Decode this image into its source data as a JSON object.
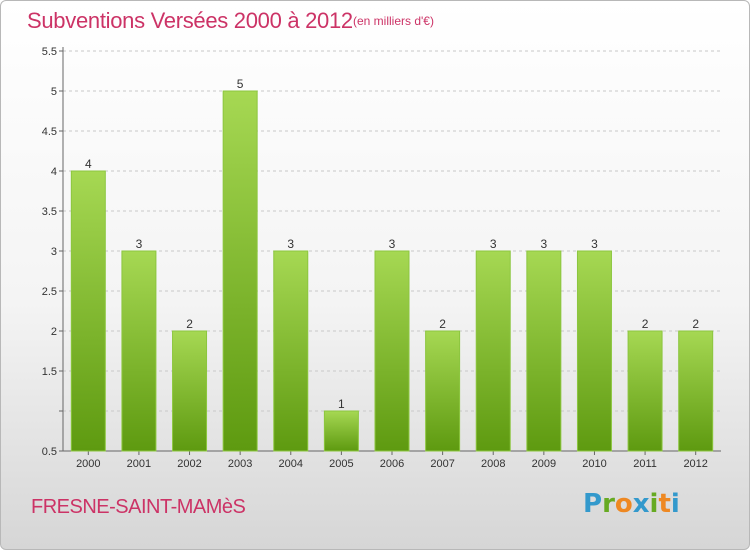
{
  "header": {
    "title": "Subventions Versées 2000 à 2012",
    "subtitle": "(en milliers d'€)"
  },
  "footer": {
    "commune": "FRESNE-SAINT-MAMèS",
    "logo_letters": [
      {
        "char": "P",
        "color": "#3399cc"
      },
      {
        "char": "r",
        "color": "#66aa22"
      },
      {
        "char": "o",
        "color": "#ee8822"
      },
      {
        "char": "x",
        "color": "#3399cc"
      },
      {
        "char": "i",
        "color": "#66aa22"
      },
      {
        "char": "t",
        "color": "#ee8822"
      },
      {
        "char": "i",
        "color": "#3399cc"
      }
    ]
  },
  "colors": {
    "bar_top": "#a6d853",
    "bar_bottom": "#5e9a10",
    "grid": "#c8c8c8",
    "title": "#cc3366"
  },
  "chart_data": {
    "type": "bar",
    "categories": [
      "2000",
      "2001",
      "2002",
      "2003",
      "2004",
      "2005",
      "2006",
      "2007",
      "2008",
      "2009",
      "2010",
      "2011",
      "2012"
    ],
    "values": [
      4,
      3,
      2,
      5,
      3,
      1,
      3,
      2,
      3,
      3,
      3,
      2,
      2
    ],
    "data_labels": [
      "4",
      "3",
      "2",
      "5",
      "3",
      "1",
      "3",
      "2",
      "3",
      "3",
      "3",
      "2",
      "2"
    ],
    "ylim": [
      0.5,
      5.5
    ],
    "yticks": [
      0.5,
      1,
      1.5,
      2,
      2.5,
      3,
      3.5,
      4,
      4.5,
      5,
      5.5
    ],
    "ytick_labels": [
      "0.5",
      "",
      "1.5",
      "2",
      "2.5",
      "3",
      "3.5",
      "4",
      "4.5",
      "5",
      "5.5"
    ],
    "grid": true,
    "xlabel": "",
    "ylabel": ""
  }
}
